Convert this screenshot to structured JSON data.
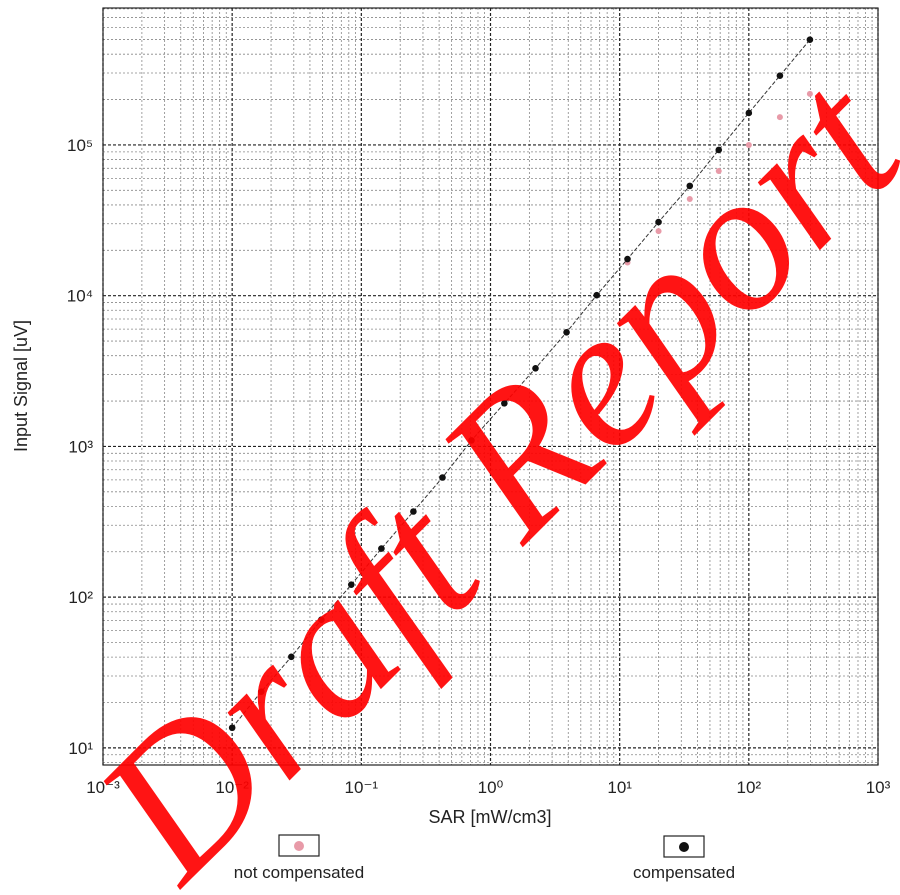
{
  "chart_data": {
    "type": "scatter",
    "xlabel": "SAR [mW/cm3]",
    "ylabel": "Input Signal [uV]",
    "log_x": true,
    "log_y": true,
    "grid": true,
    "xlim": [
      0.001,
      1000
    ],
    "ylim": [
      7.7,
      810000
    ],
    "xticks": [
      {
        "value": 0.001,
        "label": "10⁻³"
      },
      {
        "value": 0.01,
        "label": "10⁻²"
      },
      {
        "value": 0.1,
        "label": "10⁻¹"
      },
      {
        "value": 1,
        "label": "10⁰"
      },
      {
        "value": 10,
        "label": "10¹"
      },
      {
        "value": 100,
        "label": "10²"
      },
      {
        "value": 1000,
        "label": "10³"
      }
    ],
    "yticks": [
      {
        "value": 10,
        "label": "10¹"
      },
      {
        "value": 100,
        "label": "10²"
      },
      {
        "value": 1000,
        "label": "10³"
      },
      {
        "value": 10000,
        "label": "10⁴"
      },
      {
        "value": 100000,
        "label": "10⁵"
      }
    ],
    "x": [
      0.01,
      0.0168,
      0.0287,
      0.049,
      0.0836,
      0.143,
      0.253,
      0.425,
      0.713,
      1.28,
      2.23,
      3.88,
      6.64,
      11.5,
      20.0,
      34.9,
      58.5,
      100,
      174,
      297
    ],
    "series": [
      {
        "name": "not compensated",
        "color": "#e89aa8",
        "values": [
          13.6,
          23.6,
          40.2,
          70.9,
          121,
          210,
          370,
          622,
          1096,
          1932,
          3296,
          5715,
          10070,
          16600,
          26800,
          43800,
          67100,
          100000,
          153000,
          218000
        ]
      },
      {
        "name": "compensated",
        "color": "#111111",
        "values": [
          13.6,
          23.6,
          40.2,
          70.9,
          121,
          210,
          370,
          622,
          1096,
          1932,
          3296,
          5715,
          10070,
          17500,
          30800,
          53500,
          92700,
          163000,
          288000,
          499000
        ]
      }
    ],
    "watermark": "Draft Report"
  }
}
